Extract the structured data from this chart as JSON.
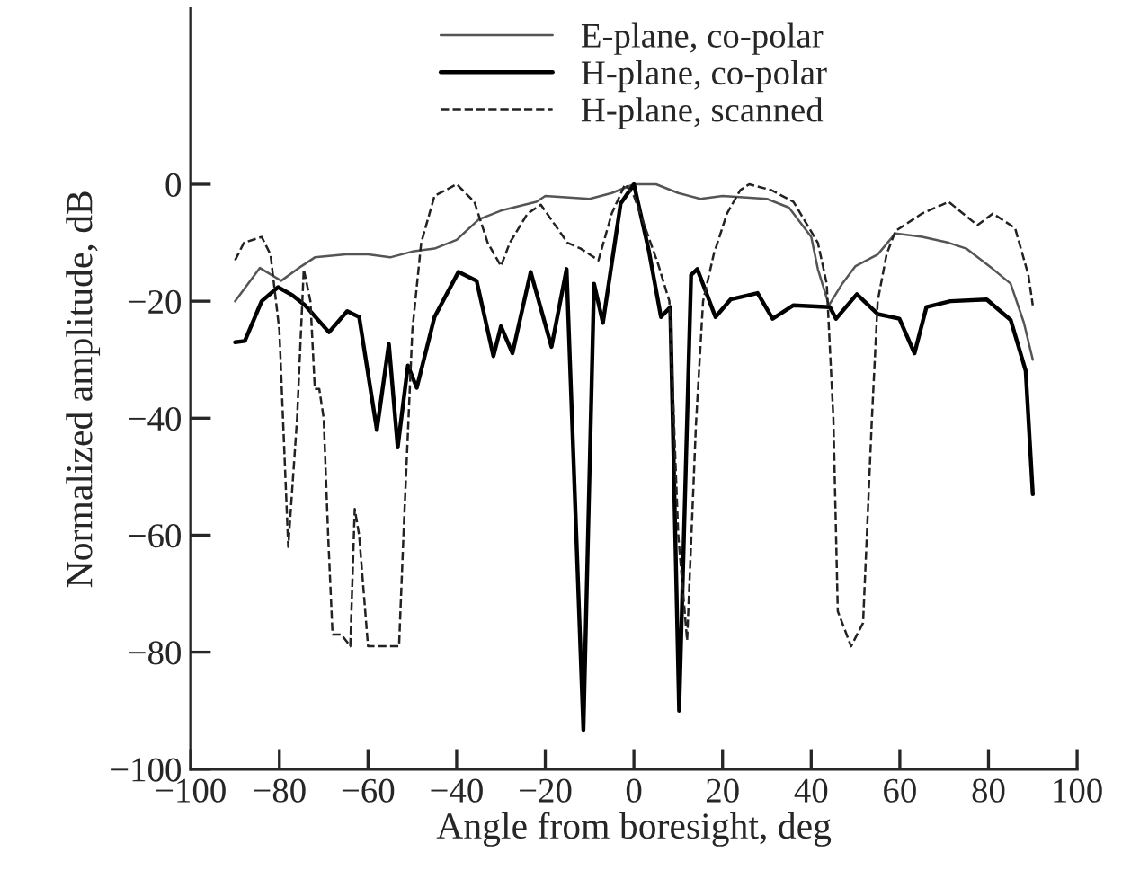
{
  "chart_data": {
    "type": "line",
    "xlabel": "Angle from boresight, deg",
    "ylabel": "Normalized amplitude, dB",
    "xlim": [
      -100,
      100
    ],
    "ylim": [
      -100,
      30
    ],
    "xticks": [
      -100,
      -80,
      -60,
      -40,
      -20,
      0,
      20,
      40,
      60,
      80,
      100
    ],
    "yticks": [
      -100,
      -80,
      -60,
      -40,
      -20,
      0
    ],
    "grid": false,
    "legend": "top",
    "marker": "none",
    "series": [
      {
        "name": "E-plane, co-polar",
        "color": "#555555",
        "line_style": "solid",
        "x": [
          -90,
          -84.4,
          -79.6,
          -75,
          -72,
          -65,
          -60,
          -55,
          -50,
          -45,
          -40,
          -35,
          -30,
          -22,
          -20,
          -10,
          -5,
          0,
          5,
          10,
          15,
          20,
          30,
          35,
          40,
          41.5,
          44,
          47,
          50,
          55,
          59,
          65,
          71,
          75,
          81,
          85,
          88,
          90
        ],
        "values": [
          -20,
          -14.3,
          -16.5,
          -14,
          -12.5,
          -12,
          -12,
          -12.5,
          -11.5,
          -11,
          -9.5,
          -6,
          -4.5,
          -3,
          -2,
          -2.5,
          -1.5,
          0,
          0,
          -1.5,
          -2.5,
          -2,
          -2.5,
          -4,
          -9,
          -14.5,
          -20.7,
          -17,
          -14,
          -12,
          -8.4,
          -9,
          -10,
          -11,
          -14.5,
          -17,
          -23.7,
          -30
        ]
      },
      {
        "name": "H-plane, co-polar",
        "color": "#000000",
        "line_style": "solid",
        "x": [
          -90,
          -87.8,
          -84,
          -80.3,
          -77,
          -74.2,
          -68.8,
          -64.7,
          -62,
          -58,
          -55.3,
          -53.3,
          -51,
          -49,
          -45,
          -39.6,
          -35.5,
          -31.7,
          -30,
          -27.4,
          -23.3,
          -18.6,
          -15.2,
          -11.4,
          -9,
          -7,
          -3,
          0,
          3.4,
          6.1,
          8.2,
          10.2,
          12.9,
          14.3,
          18.4,
          21.8,
          27.9,
          31.3,
          36,
          44.2,
          45.6,
          50.3,
          55,
          59.9,
          63.3,
          66,
          71.4,
          79.6,
          85,
          88.4,
          90
        ],
        "values": [
          -27,
          -26.8,
          -20,
          -17.6,
          -19,
          -20.7,
          -25.3,
          -21.7,
          -22.7,
          -42,
          -27.3,
          -45,
          -31,
          -34.8,
          -22.7,
          -15,
          -16.5,
          -29.4,
          -24.3,
          -28.9,
          -15,
          -27.8,
          -14.5,
          -93.3,
          -17,
          -23.7,
          -3.3,
          0,
          -11.5,
          -22.7,
          -21,
          -90,
          -15.5,
          -14.5,
          -22.7,
          -19.7,
          -18.6,
          -23,
          -20.7,
          -21,
          -23,
          -18.8,
          -22.2,
          -23,
          -28.9,
          -21,
          -20,
          -19.7,
          -23.2,
          -31.9,
          -53
        ]
      },
      {
        "name": "H-plane, scanned",
        "color": "#222222",
        "line_style": "dashed",
        "x": [
          -90,
          -88,
          -84,
          -82,
          -80,
          -78,
          -76,
          -74.5,
          -73,
          -72,
          -71,
          -70,
          -69,
          -68,
          -66,
          -64,
          -63,
          -62,
          -60,
          -58,
          -55,
          -53,
          -52,
          -50,
          -48,
          -45,
          -40,
          -36,
          -33,
          -30,
          -28,
          -24,
          -21,
          -15,
          -12,
          -8,
          -5,
          -2,
          0,
          5.4,
          8,
          10,
          12,
          14,
          15.6,
          18,
          21,
          24,
          26,
          31,
          36,
          41.5,
          43.5,
          45,
          46,
          49,
          51.7,
          53.7,
          55,
          57,
          59,
          65,
          71,
          77.5,
          81,
          86,
          89,
          90
        ],
        "values": [
          -13,
          -10,
          -9,
          -12,
          -25,
          -62,
          -40,
          -14.5,
          -20,
          -35,
          -35,
          -40,
          -60,
          -77,
          -77,
          -79,
          -55.5,
          -60,
          -79,
          -79,
          -79,
          -79,
          -60,
          -25,
          -10,
          -2,
          0,
          -3,
          -10,
          -14,
          -10,
          -5,
          -3.5,
          -10,
          -11,
          -13,
          -5,
          0,
          -2,
          -13.5,
          -20,
          -60,
          -78,
          -41,
          -20,
          -12,
          -5,
          -1,
          0,
          -1,
          -3,
          -10,
          -17,
          -40,
          -73,
          -79,
          -75,
          -40,
          -20,
          -12,
          -8,
          -5,
          -3,
          -7,
          -5,
          -7.5,
          -15.5,
          -20.7
        ]
      }
    ]
  }
}
